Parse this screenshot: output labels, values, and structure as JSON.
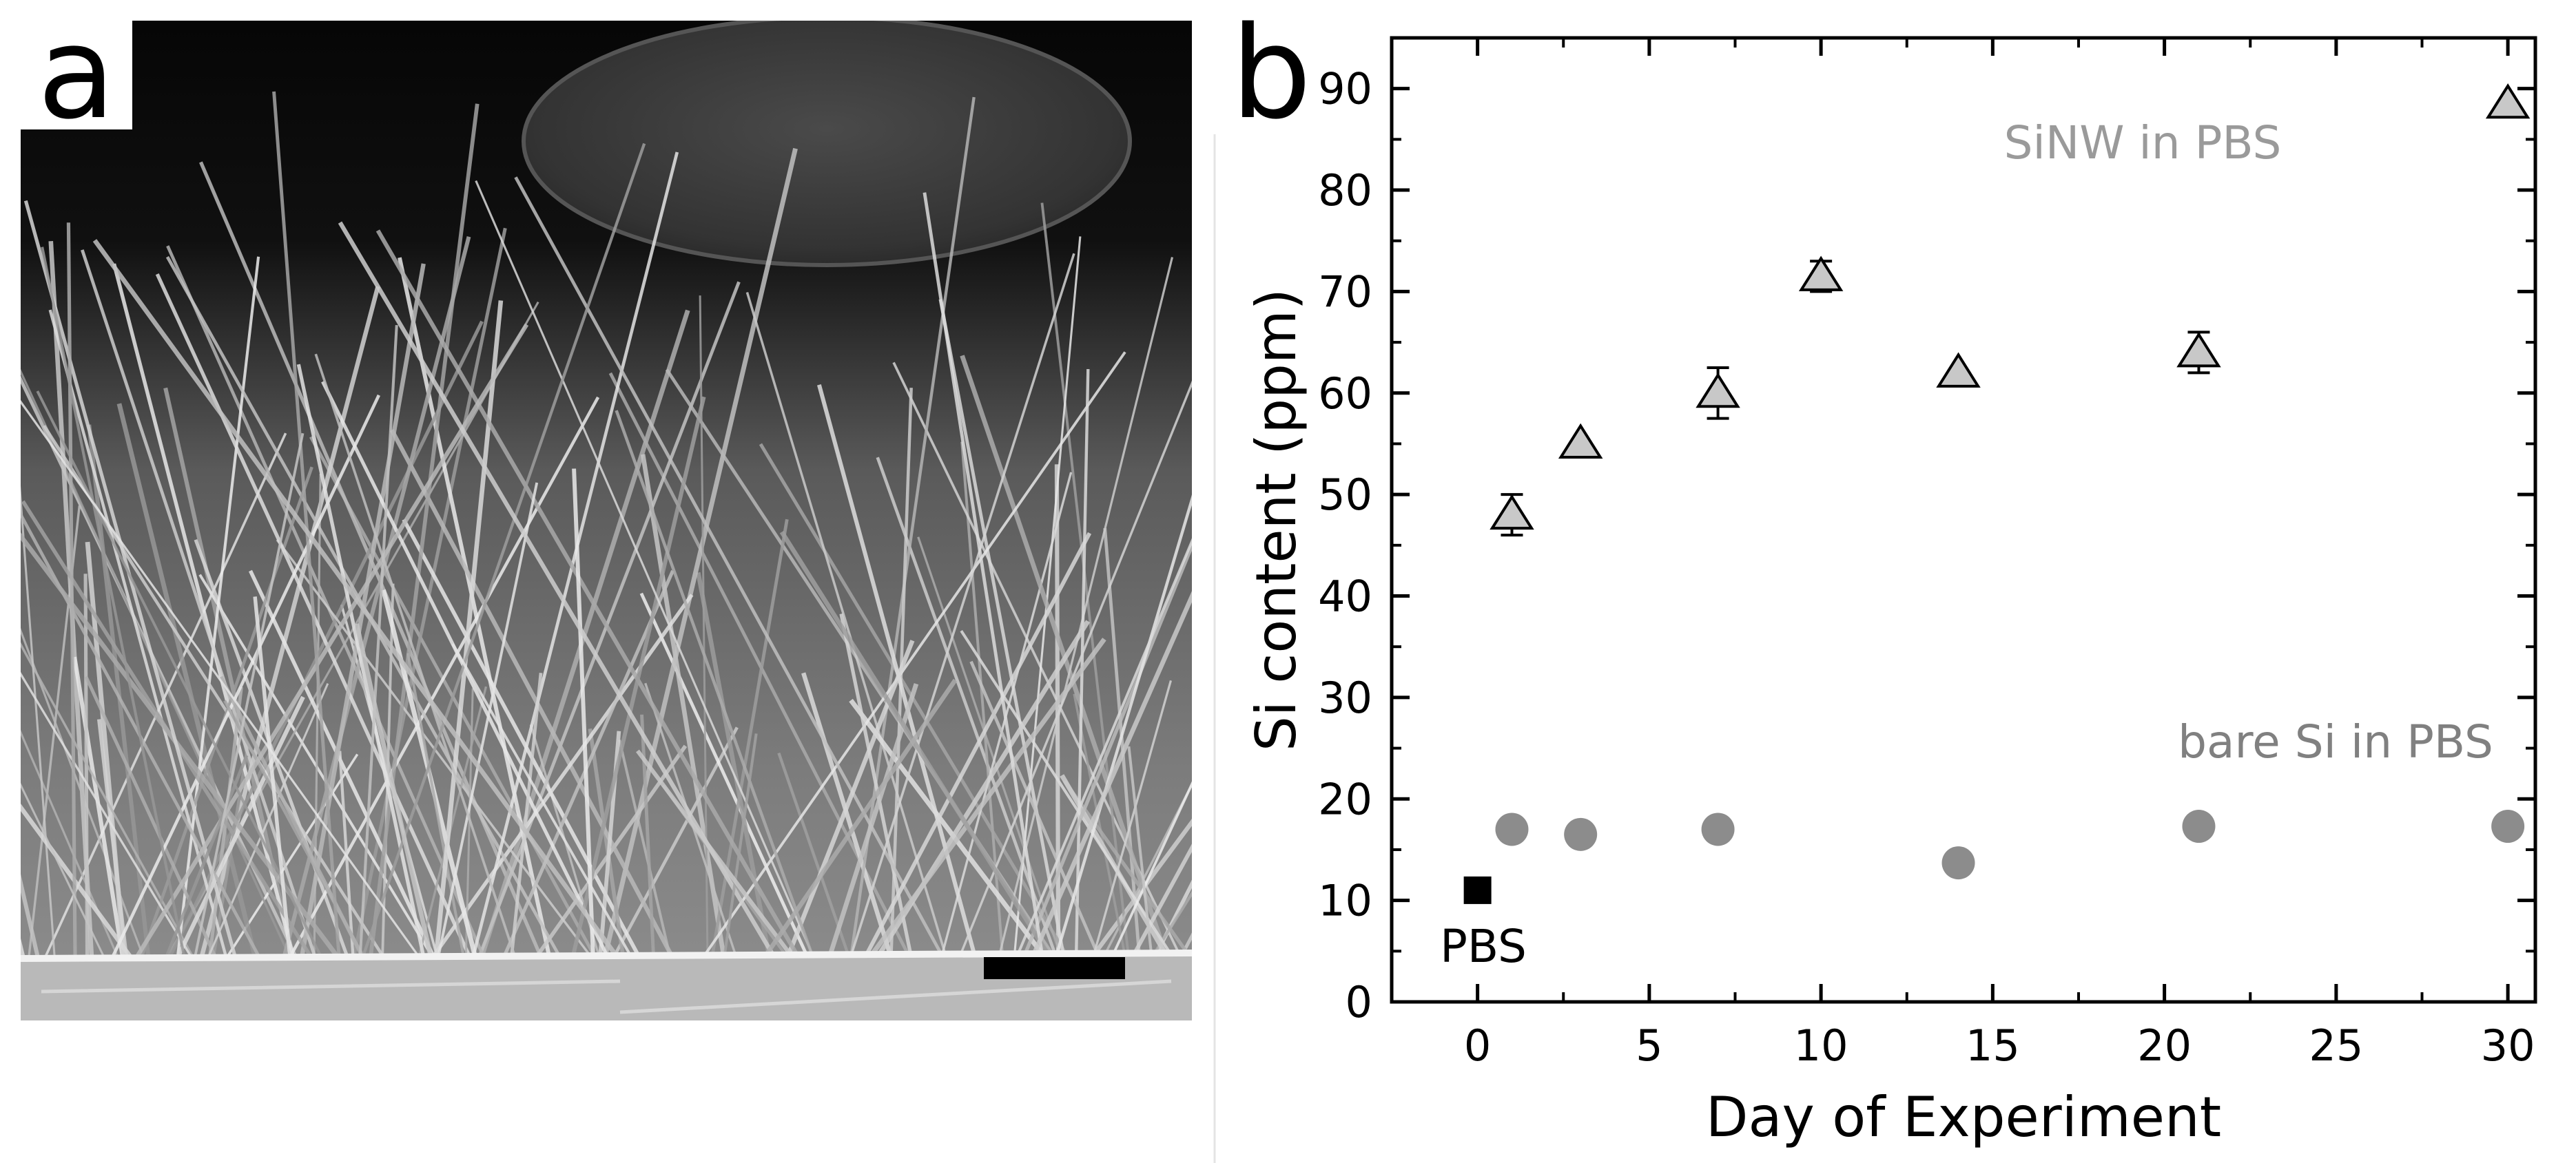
{
  "panel_a": {
    "label": "a"
  },
  "panel_b": {
    "label": "b"
  },
  "chart_data": {
    "type": "scatter",
    "xlabel": "Day of Experiment",
    "ylabel": "Si content (ppm)",
    "xlim": [
      -2.5,
      30.8
    ],
    "ylim": [
      0,
      95
    ],
    "xticks": [
      0,
      5,
      10,
      15,
      20,
      25,
      30
    ],
    "yticks": [
      0,
      10,
      20,
      30,
      40,
      50,
      60,
      70,
      80,
      90
    ],
    "grid": false,
    "series": [
      {
        "name": "SiNW in PBS",
        "marker": "triangle",
        "color": "#c8c8c8",
        "label_color": "#9a9a9a",
        "points": [
          {
            "x": 1,
            "y": 48,
            "err": 2.0
          },
          {
            "x": 3,
            "y": 55,
            "err": 0
          },
          {
            "x": 7,
            "y": 60,
            "err": 2.5
          },
          {
            "x": 10,
            "y": 71.5,
            "err": 1.5
          },
          {
            "x": 14,
            "y": 62,
            "err": 0
          },
          {
            "x": 21,
            "y": 64,
            "err": 2.0
          },
          {
            "x": 30,
            "y": 88.5,
            "err": 0
          }
        ]
      },
      {
        "name": "bare Si in PBS",
        "marker": "circle",
        "color": "#8c8c8c",
        "label_color": "#808080",
        "points": [
          {
            "x": 1,
            "y": 17
          },
          {
            "x": 3,
            "y": 16.5
          },
          {
            "x": 7,
            "y": 17
          },
          {
            "x": 14,
            "y": 13.7
          },
          {
            "x": 21,
            "y": 17.3
          },
          {
            "x": 30,
            "y": 17.3
          }
        ]
      },
      {
        "name": "PBS",
        "marker": "square",
        "color": "#000000",
        "label_color": "#000000",
        "points": [
          {
            "x": 0,
            "y": 11
          }
        ]
      }
    ]
  }
}
